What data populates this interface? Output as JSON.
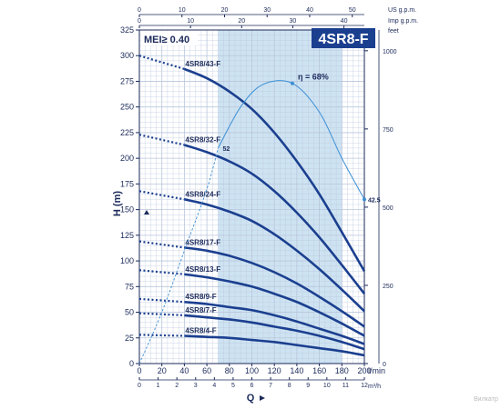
{
  "chart_data": {
    "type": "line",
    "title": "4SR8-F",
    "mei": "MEI≥ 0.40",
    "xlabel": "Q",
    "ylabel": "H (m)",
    "units": {
      "lmin": "l/min",
      "m3h": "m³/h",
      "usgpm": "US g.p.m.",
      "impgpm": "Imp g.p.m.",
      "feet": "feet"
    },
    "xlim_lmin": [
      0,
      200
    ],
    "ylim_m": [
      0,
      325
    ],
    "x_ticks_lmin": [
      0,
      20,
      40,
      60,
      80,
      100,
      120,
      140,
      160,
      180,
      200
    ],
    "x_ticks_m3h": [
      0,
      1,
      2,
      3,
      4,
      5,
      6,
      7,
      8,
      9,
      10,
      11,
      12
    ],
    "x_ticks_usgpm": [
      0,
      10,
      20,
      30,
      40,
      50
    ],
    "x_ticks_impgpm": [
      0,
      10,
      20,
      30,
      40
    ],
    "y_ticks_m": [
      0,
      25,
      50,
      75,
      100,
      125,
      150,
      175,
      200,
      225,
      250,
      275,
      300,
      325
    ],
    "y_ticks_feet": [
      0,
      250,
      500,
      750,
      1000
    ],
    "recommended_range_lmin": [
      70,
      180
    ],
    "grid": true,
    "series": [
      {
        "name": "4SR8/43-F",
        "x_dot": [
          0,
          40
        ],
        "y_dot": [
          300,
          287
        ],
        "x": [
          40,
          60,
          80,
          100,
          120,
          140,
          160,
          180,
          200
        ],
        "y": [
          287,
          278,
          265,
          248,
          225,
          197,
          165,
          128,
          90
        ]
      },
      {
        "name": "4SR8/32-F",
        "x_dot": [
          0,
          40
        ],
        "y_dot": [
          223,
          213
        ],
        "x": [
          40,
          60,
          80,
          100,
          120,
          140,
          160,
          180,
          200
        ],
        "y": [
          213,
          206,
          197,
          185,
          168,
          147,
          123,
          96,
          68
        ]
      },
      {
        "name": "4SR8/24-F",
        "x_dot": [
          0,
          40
        ],
        "y_dot": [
          168,
          160
        ],
        "x": [
          40,
          60,
          80,
          100,
          120,
          140,
          160,
          180,
          200
        ],
        "y": [
          160,
          155,
          148,
          139,
          126,
          110,
          92,
          72,
          51
        ]
      },
      {
        "name": "4SR8/17-F",
        "x_dot": [
          0,
          40
        ],
        "y_dot": [
          119,
          113
        ],
        "x": [
          40,
          60,
          80,
          100,
          120,
          140,
          160,
          180,
          200
        ],
        "y": [
          113,
          110,
          105,
          98,
          89,
          78,
          65,
          51,
          36
        ]
      },
      {
        "name": "4SR8/13-F",
        "x_dot": [
          0,
          40
        ],
        "y_dot": [
          91,
          87
        ],
        "x": [
          40,
          60,
          80,
          100,
          120,
          140,
          160,
          180,
          200
        ],
        "y": [
          87,
          84,
          80,
          75,
          68,
          60,
          50,
          39,
          27
        ]
      },
      {
        "name": "4SR8/9-F",
        "x_dot": [
          0,
          40
        ],
        "y_dot": [
          63,
          60
        ],
        "x": [
          40,
          60,
          80,
          100,
          120,
          140,
          160,
          180,
          200
        ],
        "y": [
          60,
          58,
          55,
          52,
          47,
          41,
          34,
          27,
          19
        ]
      },
      {
        "name": "4SR8/7-F",
        "x_dot": [
          0,
          40
        ],
        "y_dot": [
          49,
          47
        ],
        "x": [
          40,
          60,
          80,
          100,
          120,
          140,
          160,
          180,
          200
        ],
        "y": [
          47,
          45,
          43,
          40,
          36,
          32,
          27,
          21,
          14
        ]
      },
      {
        "name": "4SR8/4-F",
        "x_dot": [
          0,
          40
        ],
        "y_dot": [
          28,
          27
        ],
        "x": [
          40,
          60,
          80,
          100,
          120,
          140,
          160,
          180,
          200
        ],
        "y": [
          27,
          26,
          25,
          23,
          21,
          18,
          15,
          12,
          8
        ]
      }
    ],
    "efficiency": {
      "x_dashed": [
        0,
        20,
        40,
        60,
        70
      ],
      "y_dashed": [
        0,
        50,
        110,
        170,
        210
      ],
      "x": [
        70,
        90,
        110,
        136,
        160,
        180,
        200
      ],
      "y": [
        210,
        250,
        272,
        273,
        245,
        200,
        160
      ],
      "peak_label": "η = 68%",
      "left_label": "52",
      "right_label": "42.5"
    },
    "watermark": "Вилкатр"
  }
}
